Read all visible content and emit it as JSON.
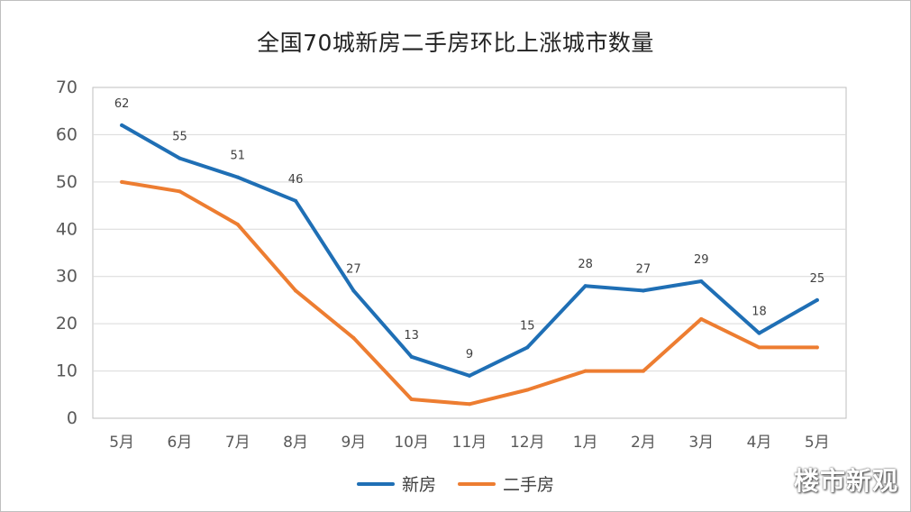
{
  "chart_data": {
    "type": "line",
    "title": "全国70城新房二手房环比上涨城市数量",
    "categories": [
      "5月",
      "6月",
      "7月",
      "8月",
      "9月",
      "10月",
      "11月",
      "12月",
      "1月",
      "2月",
      "3月",
      "4月",
      "5月"
    ],
    "ylim": [
      0,
      70
    ],
    "yticks": [
      0,
      10,
      20,
      30,
      40,
      50,
      60,
      70
    ],
    "grid": true,
    "legend_position": "bottom",
    "series": [
      {
        "name": "新房",
        "color": "#1f6fb5",
        "values": [
          62,
          55,
          51,
          46,
          27,
          13,
          9,
          15,
          28,
          27,
          29,
          18,
          25
        ],
        "labels": true
      },
      {
        "name": "二手房",
        "color": "#ed7d31",
        "values": [
          50,
          48,
          41,
          27,
          17,
          4,
          3,
          6,
          10,
          10,
          21,
          15,
          15
        ],
        "labels": false
      }
    ]
  },
  "watermark": "楼市新观"
}
